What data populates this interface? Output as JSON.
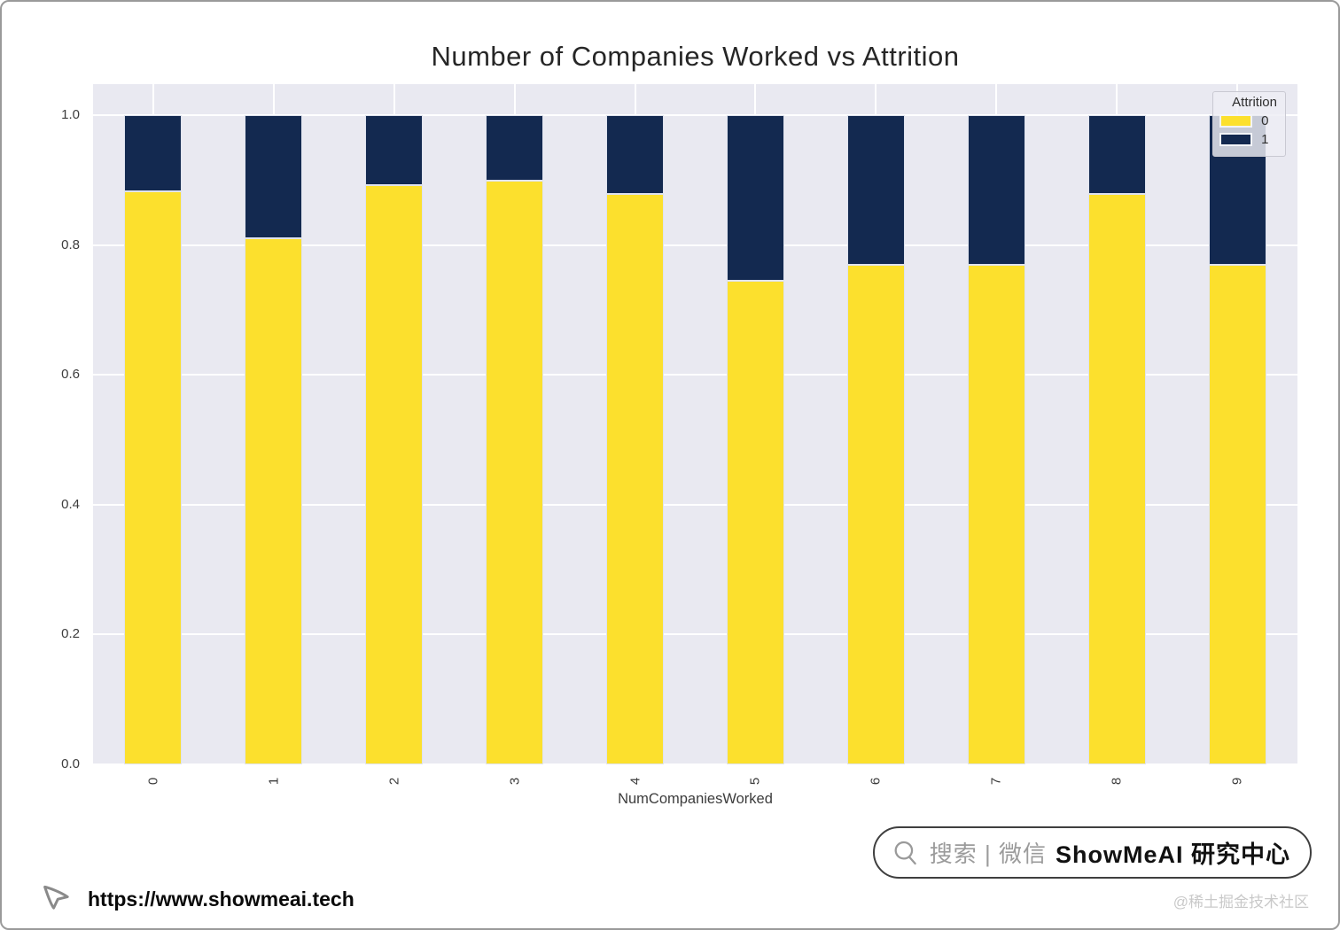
{
  "chart_data": {
    "type": "bar",
    "stacked": true,
    "normalized": true,
    "title": "Number of Companies Worked vs Attrition",
    "xlabel": "NumCompaniesWorked",
    "ylabel": "",
    "categories": [
      "0",
      "1",
      "2",
      "3",
      "4",
      "5",
      "6",
      "7",
      "8",
      "9"
    ],
    "series": [
      {
        "name": "0",
        "color": "#FCE02D",
        "values": [
          0.883,
          0.811,
          0.892,
          0.899,
          0.878,
          0.745,
          0.77,
          0.769,
          0.879,
          0.77
        ]
      },
      {
        "name": "1",
        "color": "#132950",
        "values": [
          0.117,
          0.189,
          0.108,
          0.101,
          0.122,
          0.255,
          0.23,
          0.231,
          0.121,
          0.23
        ]
      }
    ],
    "ylim": [
      0,
      1.048
    ],
    "yticks": [
      "0.0",
      "0.2",
      "0.4",
      "0.6",
      "0.8",
      "1.0"
    ],
    "grid": true,
    "legend": {
      "title": "Attrition",
      "position": "upper right",
      "entries": [
        {
          "label": "0",
          "color": "#FCE02D"
        },
        {
          "label": "1",
          "color": "#132950"
        }
      ]
    },
    "plot_bg": "#E9E9F1"
  },
  "watermark": {
    "search_prefix": "搜索 | 微信",
    "search_brand": "ShowMeAI 研究中心",
    "url": "https://www.showmeai.tech",
    "community": "@稀土掘金技术社区"
  },
  "icons": {
    "search": "search-icon",
    "cursor": "cursor-pointer-icon"
  }
}
